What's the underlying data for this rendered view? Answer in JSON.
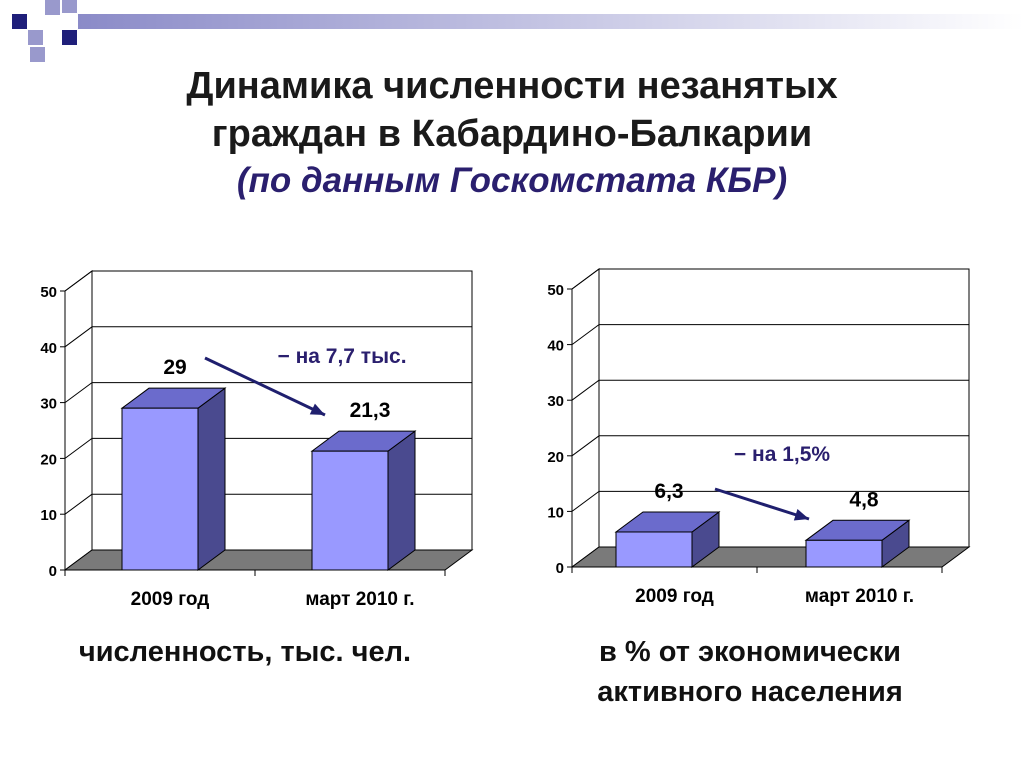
{
  "title_line1": "Динамика численности незанятых",
  "title_line2": "граждан в Кабардино-Балкарии",
  "subtitle": "(по данным Госкомстата КБР)",
  "colors": {
    "bar_front": "#9999ff",
    "bar_top": "#6b6bcc",
    "bar_side": "#4a4a8f",
    "floor": "#7a7a7a",
    "arrow": "#1f1f6e",
    "decor_dark": "#1f1f7a",
    "decor_light": "#9999cc"
  },
  "chart_data": [
    {
      "type": "bar",
      "categories": [
        "2009 год",
        "март 2010 г."
      ],
      "values": [
        29,
        21.3
      ],
      "data_labels": [
        "29",
        "21,3"
      ],
      "ylim": [
        0,
        50
      ],
      "yticks": [
        0,
        10,
        20,
        30,
        40,
        50
      ],
      "ytick_labels": [
        "0",
        "10",
        "20",
        "30",
        "40",
        "50"
      ],
      "grid": true,
      "style": "3d",
      "annotation": "− на 7,7 тыс.",
      "caption": "численность, тыс. чел."
    },
    {
      "type": "bar",
      "categories": [
        "2009 год",
        "март 2010 г."
      ],
      "values": [
        6.3,
        4.8
      ],
      "data_labels": [
        "6,3",
        "4,8"
      ],
      "ylim": [
        0,
        50
      ],
      "yticks": [
        0,
        10,
        20,
        30,
        40,
        50
      ],
      "ytick_labels": [
        "0",
        "10",
        "20",
        "30",
        "40",
        "50"
      ],
      "grid": true,
      "style": "3d",
      "annotation": "− на 1,5%",
      "caption_line1": "в % от экономически",
      "caption_line2": "активного населения"
    }
  ]
}
